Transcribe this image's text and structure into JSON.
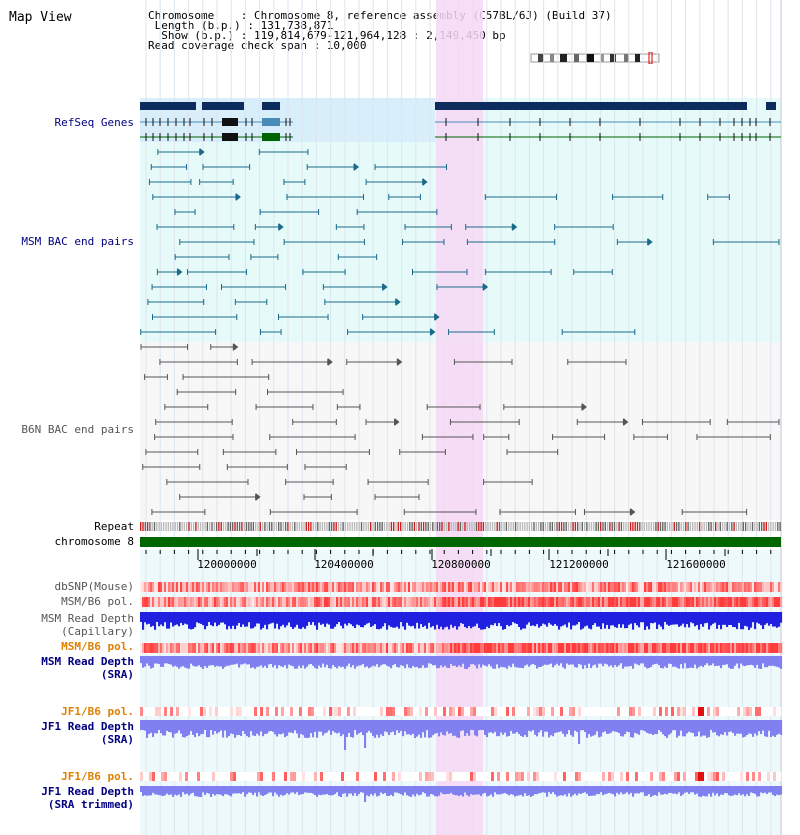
{
  "view_title": "Map View",
  "info_lines": [
    "Chromosome    : Chromosome 8, reference assembly (C57BL/6J) (Build 37)",
    " Length (b.p.) : 131,738,871",
    "  Show (b.p.) : 119,814,679-121,964,128 : 2,149,450 bp",
    "Read coverage check span : 10,000"
  ],
  "track_labels": {
    "refseq": "RefSeq Genes",
    "msm_bac": "MSM BAC end pairs",
    "b6n_bac": "B6N BAC end pairs",
    "repeat": "Repeat",
    "chromosome": "chromosome 8",
    "dbsnp": "dbSNP(Mouse)",
    "msm_b6_pol_1": "MSM/B6 pol.",
    "msm_read_depth_cap": "MSM Read Depth",
    "msm_read_depth_cap_sub": "(Capillary)",
    "msm_b6_pol_2": "MSM/B6 pol.",
    "msm_read_depth_sra": "MSM Read Depth",
    "msm_read_depth_sra_sub": "(SRA)",
    "jf1_b6_pol_1": "JF1/B6 pol.",
    "jf1_read_depth_sra": "JF1 Read Depth",
    "jf1_read_depth_sra_sub": "(SRA)",
    "jf1_b6_pol_2": "JF1/B6 pol.",
    "jf1_read_depth_trim": "JF1 Read Depth",
    "jf1_read_depth_trim_sub": "(SRA trimmed)"
  },
  "axis_ticks": [
    "120000000",
    "120400000",
    "120800000",
    "121200000",
    "121600000"
  ],
  "colors": {
    "refseq_dark": "#0b2c5c",
    "refseq_mid": "#4a8cb8",
    "refseq_green": "#006400",
    "highlight": "#f6d8f4",
    "msm_bg": "#e6fafa",
    "depth_capillary": "#2020e0",
    "depth_sra": "#8080f0",
    "chrom_bar": "#006600"
  }
}
